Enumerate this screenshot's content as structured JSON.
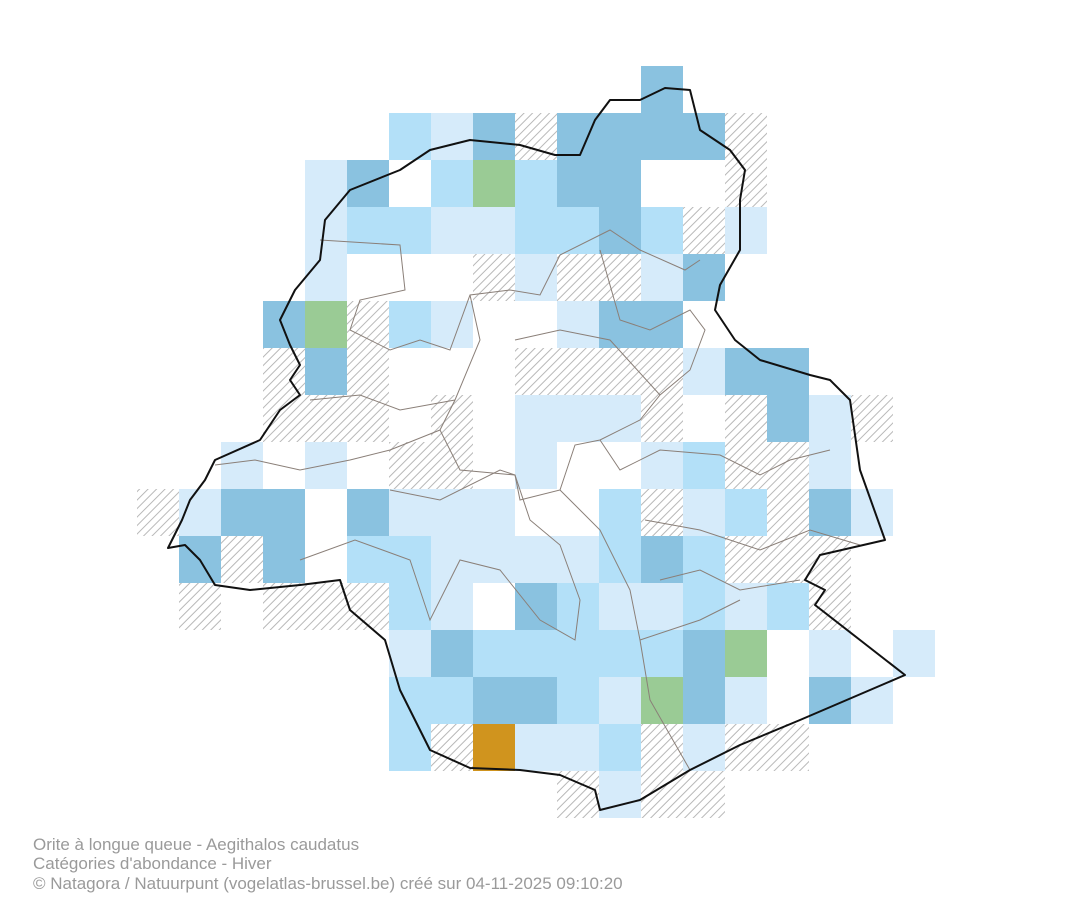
{
  "caption": {
    "species": "Orite à longue queue - Aegithalos caudatus",
    "category": "Catégories d'abondance - Hiver",
    "credit": "© Natagora / Natuurpunt (vogelatlas-brussel.be) créé sur 04-11-2025 09:10:20"
  }
}
